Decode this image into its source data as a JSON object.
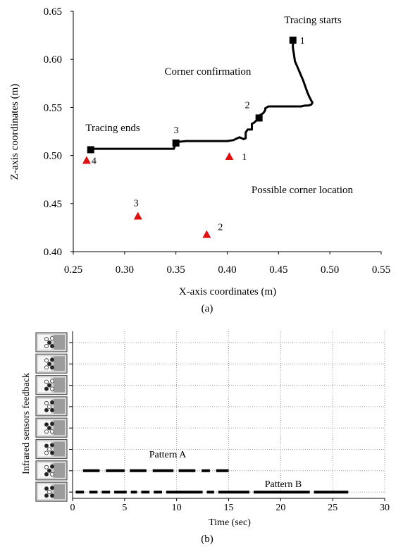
{
  "chart_data": [
    {
      "type": "line",
      "panel_label": "(a)",
      "xlabel": "X-axis coordinates (m)",
      "ylabel": "Z-axis coordinates (m)",
      "xlim": [
        0.25,
        0.55
      ],
      "ylim": [
        0.4,
        0.65
      ],
      "x_ticks": [
        "0.25",
        "0.30",
        "0.35",
        "0.40",
        "0.45",
        "0.50",
        "0.55"
      ],
      "y_ticks": [
        "0.40",
        "0.45",
        "0.50",
        "0.55",
        "0.60",
        "0.65"
      ],
      "grid": false,
      "series": [
        {
          "name": "",
          "type": "line",
          "color": "#000000",
          "x": [
            0.464,
            0.464,
            0.465,
            0.466,
            0.468,
            0.47,
            0.472,
            0.474,
            0.476,
            0.478,
            0.48,
            0.482,
            0.483,
            0.482,
            0.479,
            0.476,
            0.472,
            0.468,
            0.46,
            0.45,
            0.44,
            0.437,
            0.437,
            0.435,
            0.432,
            0.432,
            0.43,
            0.428,
            0.426,
            0.424,
            0.424,
            0.42,
            0.418,
            0.418,
            0.416,
            0.414,
            0.412,
            0.41,
            0.406,
            0.4,
            0.39,
            0.37,
            0.36,
            0.35,
            0.348,
            0.34,
            0.32,
            0.3,
            0.28,
            0.268
          ],
          "y": [
            0.62,
            0.612,
            0.605,
            0.598,
            0.593,
            0.588,
            0.583,
            0.578,
            0.572,
            0.566,
            0.561,
            0.557,
            0.555,
            0.553,
            0.552,
            0.552,
            0.551,
            0.551,
            0.551,
            0.551,
            0.551,
            0.549,
            0.547,
            0.544,
            0.542,
            0.539,
            0.538,
            0.536,
            0.534,
            0.533,
            0.527,
            0.527,
            0.524,
            0.518,
            0.517,
            0.518,
            0.519,
            0.518,
            0.516,
            0.515,
            0.515,
            0.515,
            0.515,
            0.514,
            0.507,
            0.507,
            0.507,
            0.507,
            0.507,
            0.507
          ]
        },
        {
          "name": "",
          "type": "markers",
          "marker": "square",
          "color": "#000000",
          "x": [
            0.464,
            0.431,
            0.35,
            0.267
          ],
          "y": [
            0.62,
            0.539,
            0.513,
            0.506
          ],
          "labels": [
            "1",
            "2",
            "3",
            ""
          ]
        },
        {
          "name": "",
          "type": "markers",
          "marker": "triangle",
          "color": "#e01010",
          "x": [
            0.402,
            0.38,
            0.313,
            0.263
          ],
          "y": [
            0.499,
            0.418,
            0.437,
            0.495
          ],
          "labels": [
            "1",
            "2",
            "3",
            "4"
          ]
        }
      ],
      "annotations": [
        "Tracing starts",
        "Corner confirmation",
        "Tracing ends",
        "Possible corner location"
      ]
    },
    {
      "type": "timeline",
      "panel_label": "(b)",
      "xlabel": "Time (sec)",
      "ylabel": "Infrared sensors feedback",
      "xlim": [
        0,
        30
      ],
      "x_ticks": [
        "0",
        "5",
        "10",
        "15",
        "20",
        "25",
        "30"
      ],
      "grid": true,
      "rows": 8,
      "sensor_icons": [
        [
          0,
          0,
          1,
          0,
          1
        ],
        [
          0,
          1,
          1,
          0,
          1
        ],
        [
          0,
          0,
          1,
          1,
          0
        ],
        [
          0,
          1,
          0,
          1,
          1
        ],
        [
          1,
          1,
          1,
          0,
          0
        ],
        [
          1,
          1,
          0,
          0,
          1
        ],
        [
          0,
          1,
          1,
          1,
          0
        ],
        [
          1,
          1,
          0,
          1,
          1
        ]
      ],
      "series": [
        {
          "name": "Pattern A",
          "row": 7,
          "segments": [
            [
              1.0,
              2.6
            ],
            [
              3.2,
              5.0
            ],
            [
              5.5,
              7.1
            ],
            [
              7.7,
              9.7
            ],
            [
              10.2,
              11.8
            ],
            [
              12.4,
              13.2
            ],
            [
              13.8,
              15.0
            ]
          ]
        },
        {
          "name": "Pattern B",
          "row": 8,
          "segments": [
            [
              0.3,
              1.1
            ],
            [
              1.6,
              2.4
            ],
            [
              2.8,
              3.6
            ],
            [
              4.0,
              5.2
            ],
            [
              5.6,
              6.2
            ],
            [
              6.6,
              7.4
            ],
            [
              7.8,
              8.6
            ],
            [
              9.0,
              12.5
            ],
            [
              12.9,
              13.6
            ],
            [
              14.0,
              17.0
            ],
            [
              17.4,
              22.8
            ],
            [
              23.2,
              26.5
            ]
          ]
        }
      ]
    }
  ]
}
